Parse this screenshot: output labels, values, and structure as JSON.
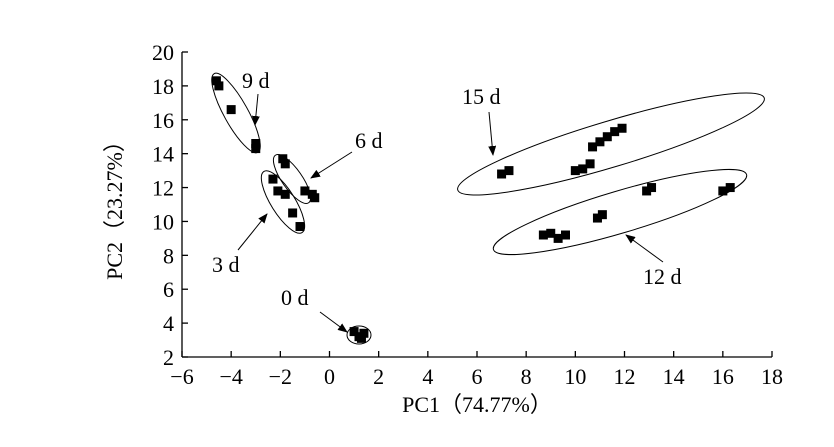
{
  "chart_data": {
    "type": "scatter",
    "x_label": "PC1（74.77%）",
    "y_label": "PC2（23.27%）",
    "xlim": [
      -6,
      18
    ],
    "ylim": [
      2,
      20
    ],
    "xticks": [
      {
        "value": -6,
        "label": "−6"
      },
      {
        "value": -4,
        "label": "−4"
      },
      {
        "value": -2,
        "label": "−2"
      },
      0,
      2,
      4,
      6,
      8,
      10,
      12,
      14,
      16,
      18
    ],
    "yticks": [
      2,
      4,
      6,
      8,
      10,
      12,
      14,
      16,
      18,
      20
    ],
    "series": [
      {
        "color": "#000000",
        "x": [
          -4.6,
          -4.5,
          -4.0,
          -3.0,
          -3.0,
          -1.9,
          -1.8,
          -1.0,
          -0.7,
          -0.6,
          -2.3,
          -2.1,
          -1.8,
          -1.5,
          -1.2,
          1.0,
          1.2,
          1.4,
          1.3,
          7.0,
          7.3,
          10.0,
          10.3,
          10.6,
          10.7,
          11.0,
          11.3,
          11.6,
          11.9,
          8.7,
          9.0,
          9.3,
          9.6,
          10.9,
          11.1,
          12.9,
          13.1,
          16.0,
          16.3
        ],
        "values": [
          18.3,
          18.0,
          16.6,
          14.6,
          14.3,
          13.7,
          13.4,
          11.8,
          11.6,
          11.4,
          12.5,
          11.8,
          11.6,
          10.5,
          9.7,
          3.5,
          3.2,
          3.4,
          3.1,
          12.8,
          13.0,
          13.0,
          13.1,
          13.4,
          14.4,
          14.7,
          15.0,
          15.3,
          15.5,
          9.2,
          9.3,
          9.0,
          9.2,
          10.2,
          10.4,
          11.8,
          12.0,
          11.8,
          12.0
        ]
      }
    ],
    "annotations": [
      "9 d",
      "6 d",
      "3 d",
      "0 d",
      "15 d",
      "12 d"
    ]
  }
}
